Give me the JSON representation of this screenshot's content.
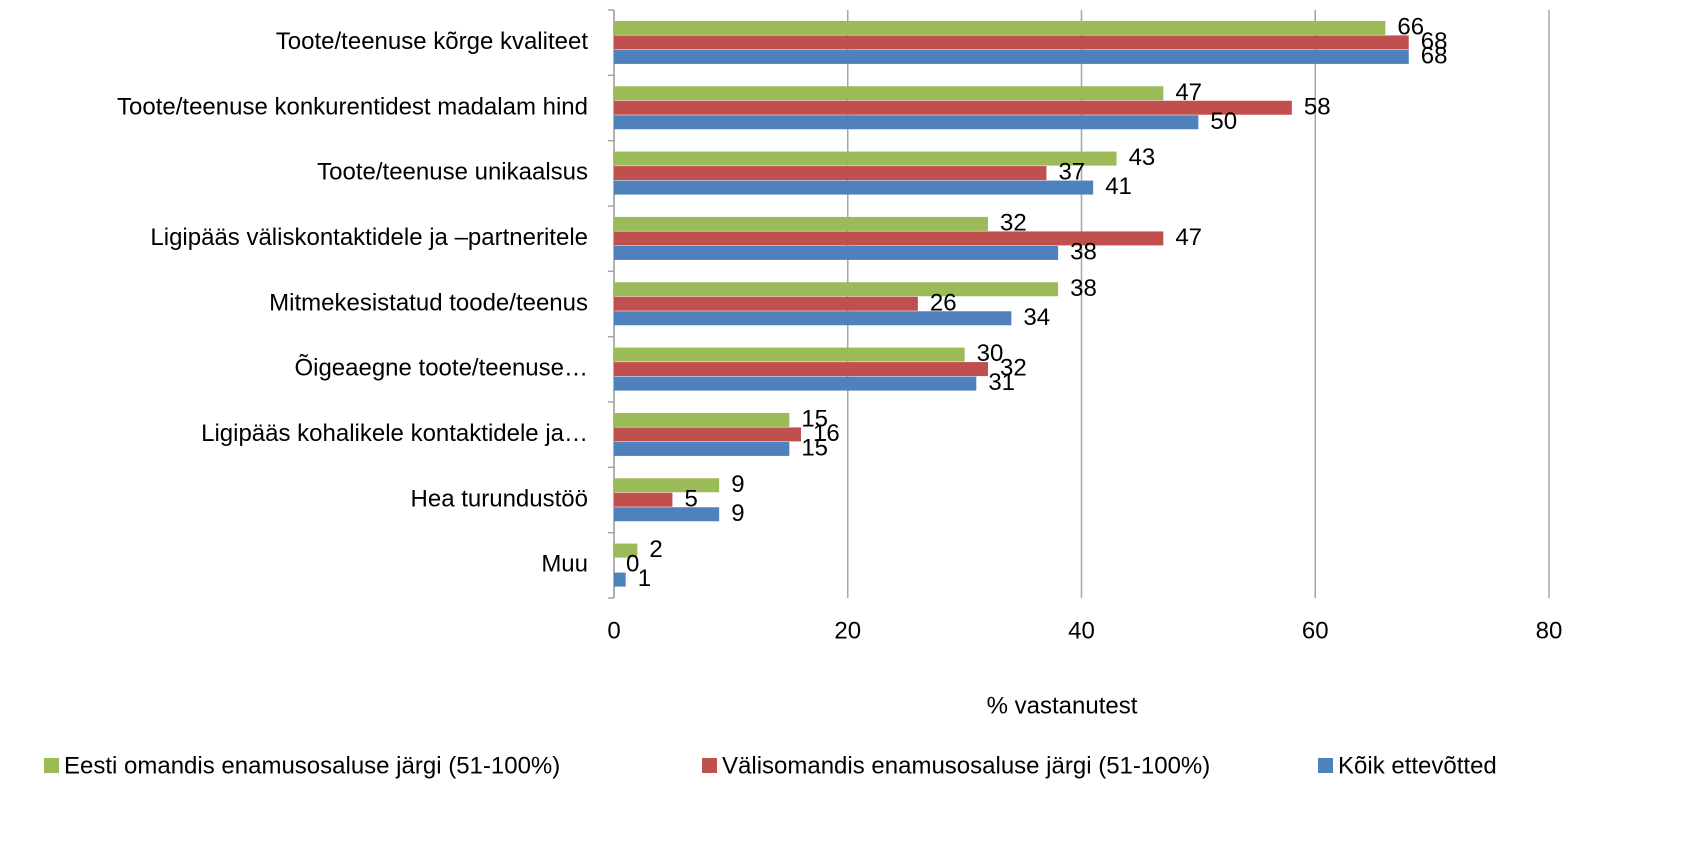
{
  "chart_data": {
    "type": "barh",
    "categories": [
      "Toote/teenuse kõrge kvaliteet",
      "Toote/teenuse konkurentidest madalam hind",
      "Toote/teenuse unikaalsus",
      "Ligipääs väliskontaktidele ja –partneritele",
      "Mitmekesistatud toode/teenus",
      "Õigeaegne toote/teenuse…",
      "Ligipääs kohalikele kontaktidele ja…",
      "Hea turundustöö",
      "Muu"
    ],
    "series": [
      {
        "name": "Eesti omandis enamusosaluse järgi (51-100%)",
        "color": "#9bbb59",
        "values": [
          66,
          47,
          43,
          32,
          38,
          30,
          15,
          9,
          2
        ]
      },
      {
        "name": "Välisomandis enamusosaluse järgi (51-100%)",
        "color": "#c0504d",
        "values": [
          68,
          58,
          37,
          47,
          26,
          32,
          16,
          5,
          0
        ]
      },
      {
        "name": "Kõik ettevõtted",
        "color": "#4f81bd",
        "values": [
          68,
          50,
          41,
          38,
          34,
          31,
          15,
          9,
          1
        ]
      }
    ],
    "x_label": "% vastanutest",
    "xlim": [
      0,
      80
    ],
    "xticks": [
      0,
      20,
      40,
      60,
      80
    ],
    "grid": true,
    "legend": "bottom"
  }
}
